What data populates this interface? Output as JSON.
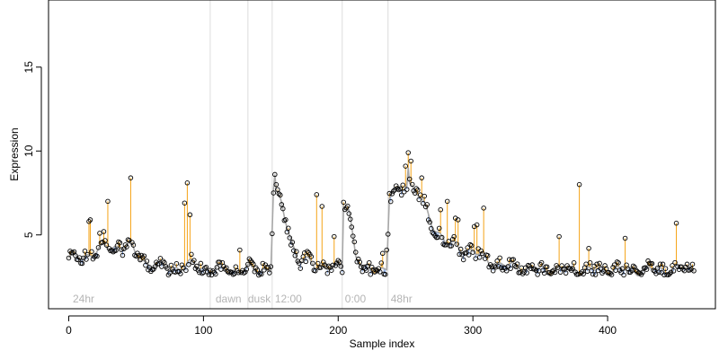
{
  "chart_data": {
    "type": "scatter",
    "title": "",
    "xlabel": "Sample index",
    "ylabel": "Expression",
    "xlim": [
      -15,
      480
    ],
    "ylim": [
      0.6,
      19
    ],
    "x_ticks": [
      0,
      100,
      200,
      300,
      400
    ],
    "y_ticks": [
      5,
      10,
      15
    ],
    "section_lines": [
      105,
      133,
      151,
      203,
      237
    ],
    "section_labels": [
      {
        "text": "24hr",
        "x": 3
      },
      {
        "text": "dawn",
        "x": 109
      },
      {
        "text": "dusk",
        "x": 133
      },
      {
        "text": "12:00",
        "x": 153
      },
      {
        "text": "0:00",
        "x": 205
      },
      {
        "text": "48hr",
        "x": 239
      }
    ],
    "colors": {
      "above": "#f5a316",
      "below": "#7a9fe0",
      "fit_line": "#a8a8a8",
      "point_edge": "#000000",
      "divider": "#dcdcdc",
      "section_label": "#b4b4b4"
    },
    "anchors": [
      [
        0,
        3.6
      ],
      [
        10,
        3.6
      ],
      [
        20,
        4.1
      ],
      [
        35,
        4.3
      ],
      [
        45,
        4.4
      ],
      [
        50,
        3.7
      ],
      [
        60,
        3.3
      ],
      [
        75,
        3.0
      ],
      [
        90,
        3.2
      ],
      [
        104,
        3.0
      ],
      [
        106,
        2.9
      ],
      [
        130,
        2.9
      ],
      [
        150,
        3.0
      ],
      [
        152,
        7.7
      ],
      [
        158,
        6.8
      ],
      [
        165,
        4.8
      ],
      [
        170,
        3.5
      ],
      [
        180,
        3.3
      ],
      [
        195,
        3.0
      ],
      [
        203,
        3.1
      ],
      [
        204,
        6.9
      ],
      [
        208,
        6.6
      ],
      [
        213,
        3.8
      ],
      [
        218,
        2.9
      ],
      [
        236,
        3.0
      ],
      [
        238,
        7.2
      ],
      [
        245,
        7.7
      ],
      [
        252,
        8.2
      ],
      [
        260,
        7.3
      ],
      [
        270,
        5.7
      ],
      [
        280,
        4.5
      ],
      [
        300,
        4.0
      ],
      [
        310,
        3.5
      ],
      [
        320,
        3.2
      ],
      [
        350,
        2.9
      ],
      [
        380,
        2.9
      ],
      [
        420,
        2.9
      ],
      [
        465,
        3.0
      ]
    ],
    "wiggle_amp": 0.35,
    "noise_amp": 0.35,
    "n_points": 465,
    "spikes": [
      [
        15,
        5.8
      ],
      [
        16,
        5.9
      ],
      [
        23,
        5.1
      ],
      [
        26,
        5.2
      ],
      [
        29,
        7.0
      ],
      [
        46,
        8.4
      ],
      [
        86,
        6.9
      ],
      [
        88,
        8.1
      ],
      [
        90,
        6.2
      ],
      [
        127,
        4.1
      ],
      [
        153,
        8.6
      ],
      [
        154,
        8.0
      ],
      [
        184,
        7.4
      ],
      [
        188,
        6.7
      ],
      [
        197,
        4.9
      ],
      [
        233,
        3.9
      ],
      [
        236,
        4.1
      ],
      [
        250,
        9.1
      ],
      [
        252,
        9.9
      ],
      [
        254,
        9.4
      ],
      [
        260,
        7.1
      ],
      [
        262,
        8.4
      ],
      [
        276,
        6.5
      ],
      [
        281,
        7.0
      ],
      [
        287,
        6.0
      ],
      [
        289,
        5.9
      ],
      [
        301,
        5.5
      ],
      [
        303,
        5.6
      ],
      [
        308,
        6.6
      ],
      [
        364,
        4.9
      ],
      [
        379,
        8.0
      ],
      [
        386,
        4.2
      ],
      [
        413,
        4.8
      ],
      [
        451,
        5.7
      ]
    ],
    "fit_spikes": [
      [
        153,
        8.6
      ],
      [
        252,
        9.0
      ]
    ]
  }
}
